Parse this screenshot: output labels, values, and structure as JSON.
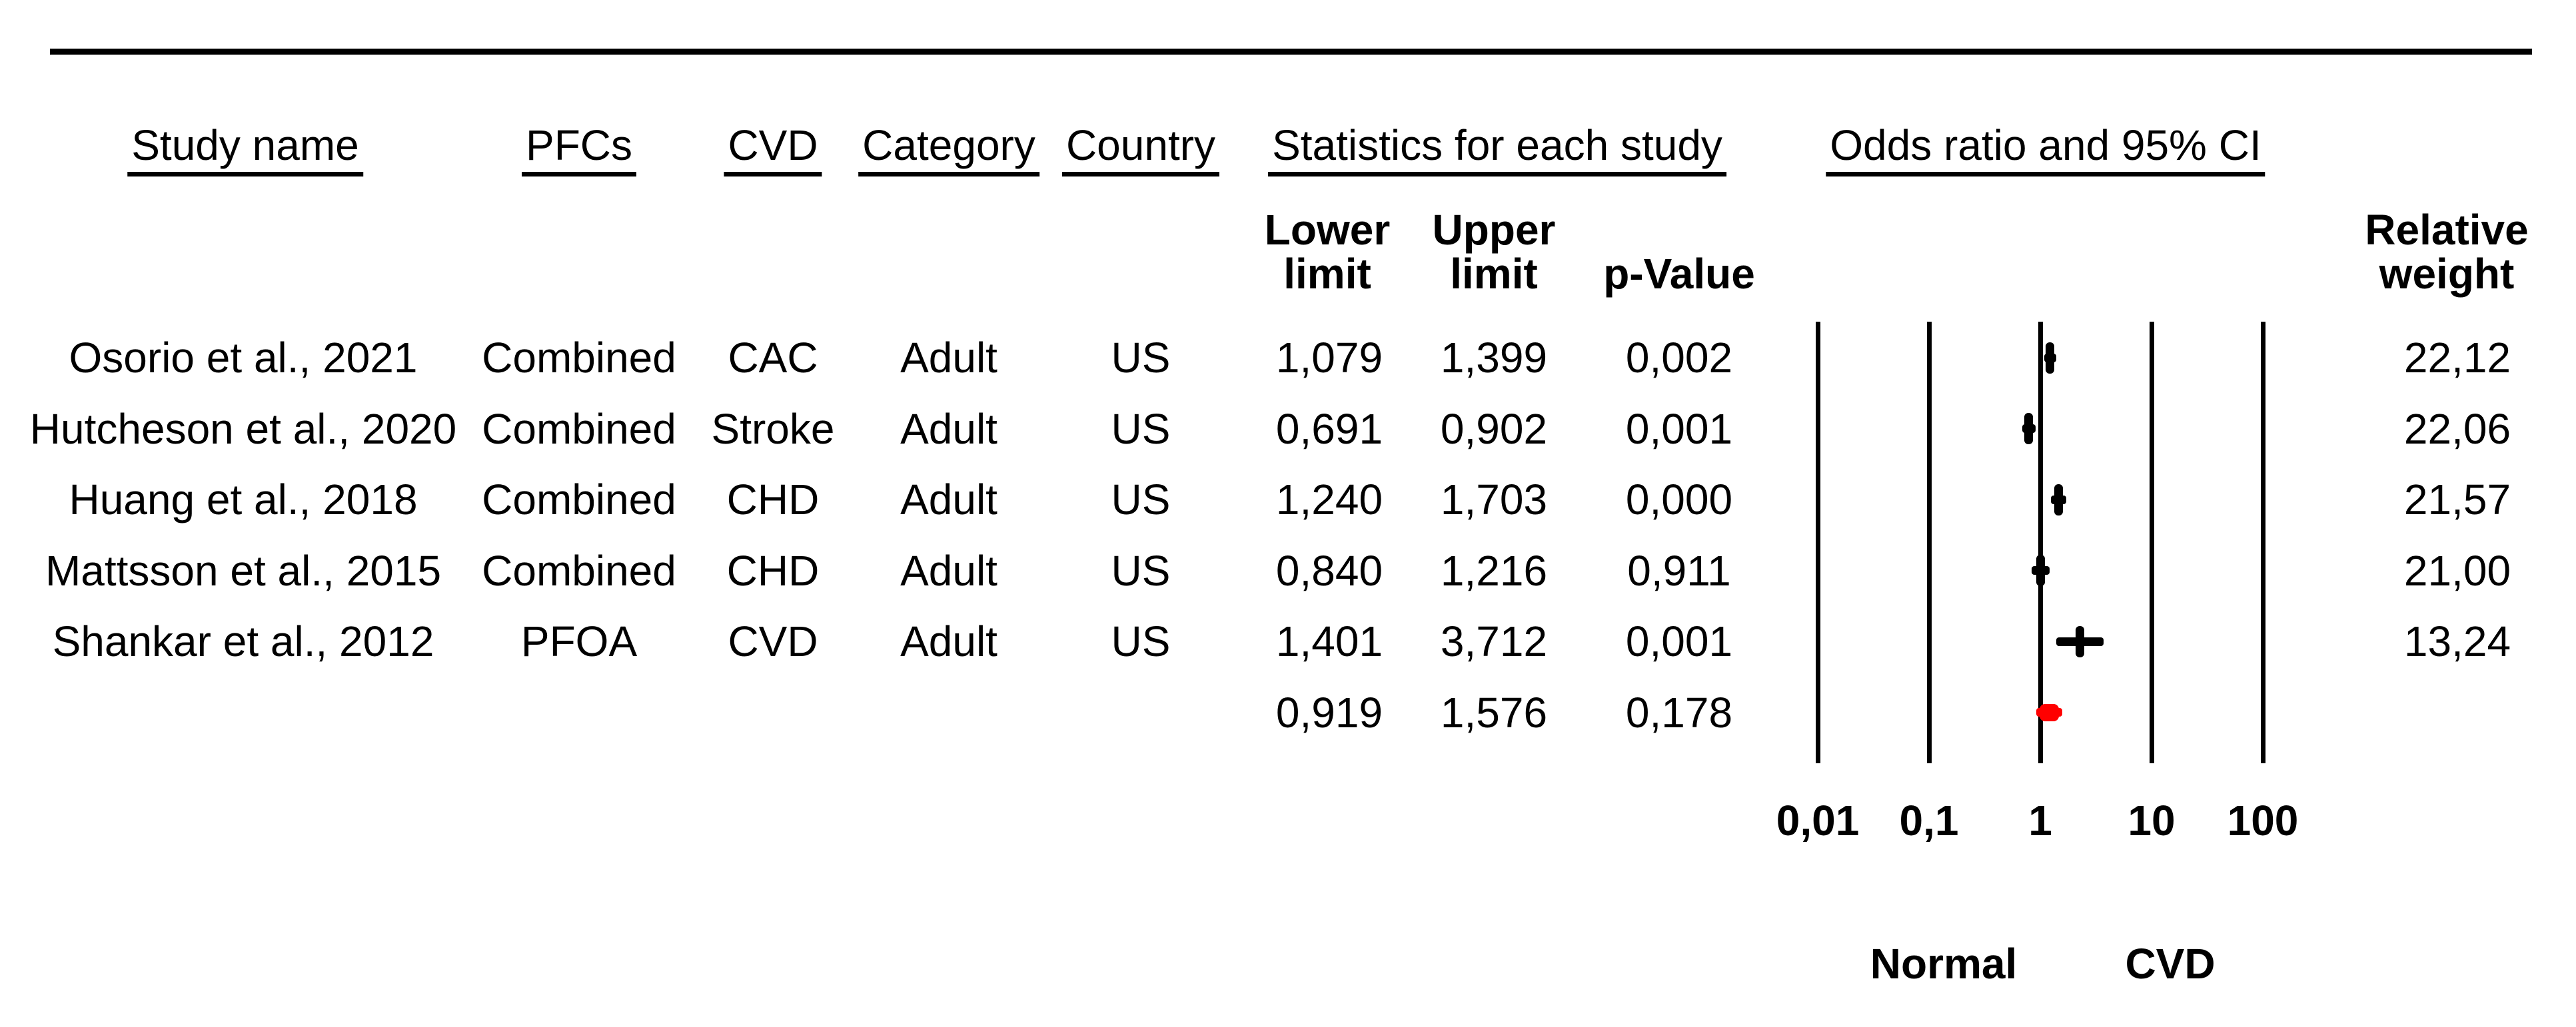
{
  "figure": {
    "headers": {
      "study": "Study name",
      "pfcs": "PFCs",
      "cvd": "CVD",
      "category": "Category",
      "country": "Country",
      "stats_group": "Statistics for each study",
      "lower_line1": "Lower",
      "lower_line2": "limit",
      "upper_line1": "Upper",
      "upper_line2": "limit",
      "pvalue": "p-Value",
      "or_group": "Odds ratio and 95% CI",
      "weight_line1": "Relative",
      "weight_line2": "weight"
    }
  },
  "chart_data": {
    "type": "forest",
    "x_scale": "log10",
    "x_range": [
      0.01,
      100
    ],
    "grid": "vertical-decade-lines",
    "colors": {
      "study_marker": "#000000",
      "summary_marker": "#ff0000",
      "text": "#000000"
    },
    "x_axis": {
      "ticks": [
        {
          "value": 0.01,
          "label": "0,01"
        },
        {
          "value": 0.1,
          "label": "0,1"
        },
        {
          "value": 1,
          "label": "1"
        },
        {
          "value": 10,
          "label": "10"
        },
        {
          "value": 100,
          "label": "100"
        }
      ]
    },
    "footer_labels": {
      "left": "Normal",
      "right": "CVD"
    },
    "studies": [
      {
        "study": "Osorio et al., 2021",
        "pfcs": "Combined",
        "cvd": "CAC",
        "category": "Adult",
        "country": "US",
        "lower": 1.079,
        "upper": 1.399,
        "lower_label": "1,079",
        "upper_label": "1,399",
        "p_label": "0,002",
        "weight_label": "22,12"
      },
      {
        "study": "Hutcheson et al., 2020",
        "pfcs": "Combined",
        "cvd": "Stroke",
        "category": "Adult",
        "country": "US",
        "lower": 0.691,
        "upper": 0.902,
        "lower_label": "0,691",
        "upper_label": "0,902",
        "p_label": "0,001",
        "weight_label": "22,06"
      },
      {
        "study": "Huang et al., 2018",
        "pfcs": "Combined",
        "cvd": "CHD",
        "category": "Adult",
        "country": "US",
        "lower": 1.24,
        "upper": 1.703,
        "lower_label": "1,240",
        "upper_label": "1,703",
        "p_label": "0,000",
        "weight_label": "21,57"
      },
      {
        "study": "Mattsson et al., 2015",
        "pfcs": "Combined",
        "cvd": "CHD",
        "category": "Adult",
        "country": "US",
        "lower": 0.84,
        "upper": 1.216,
        "lower_label": "0,840",
        "upper_label": "1,216",
        "p_label": "0,911",
        "weight_label": "21,00"
      },
      {
        "study": "Shankar et al., 2012",
        "pfcs": "PFOA",
        "cvd": "CVD",
        "category": "Adult",
        "country": "US",
        "lower": 1.401,
        "upper": 3.712,
        "lower_label": "1,401",
        "upper_label": "3,712",
        "p_label": "0,001",
        "weight_label": "13,24"
      }
    ],
    "summary": {
      "lower": 0.919,
      "upper": 1.576,
      "lower_label": "0,919",
      "upper_label": "1,576",
      "p_label": "0,178"
    }
  }
}
